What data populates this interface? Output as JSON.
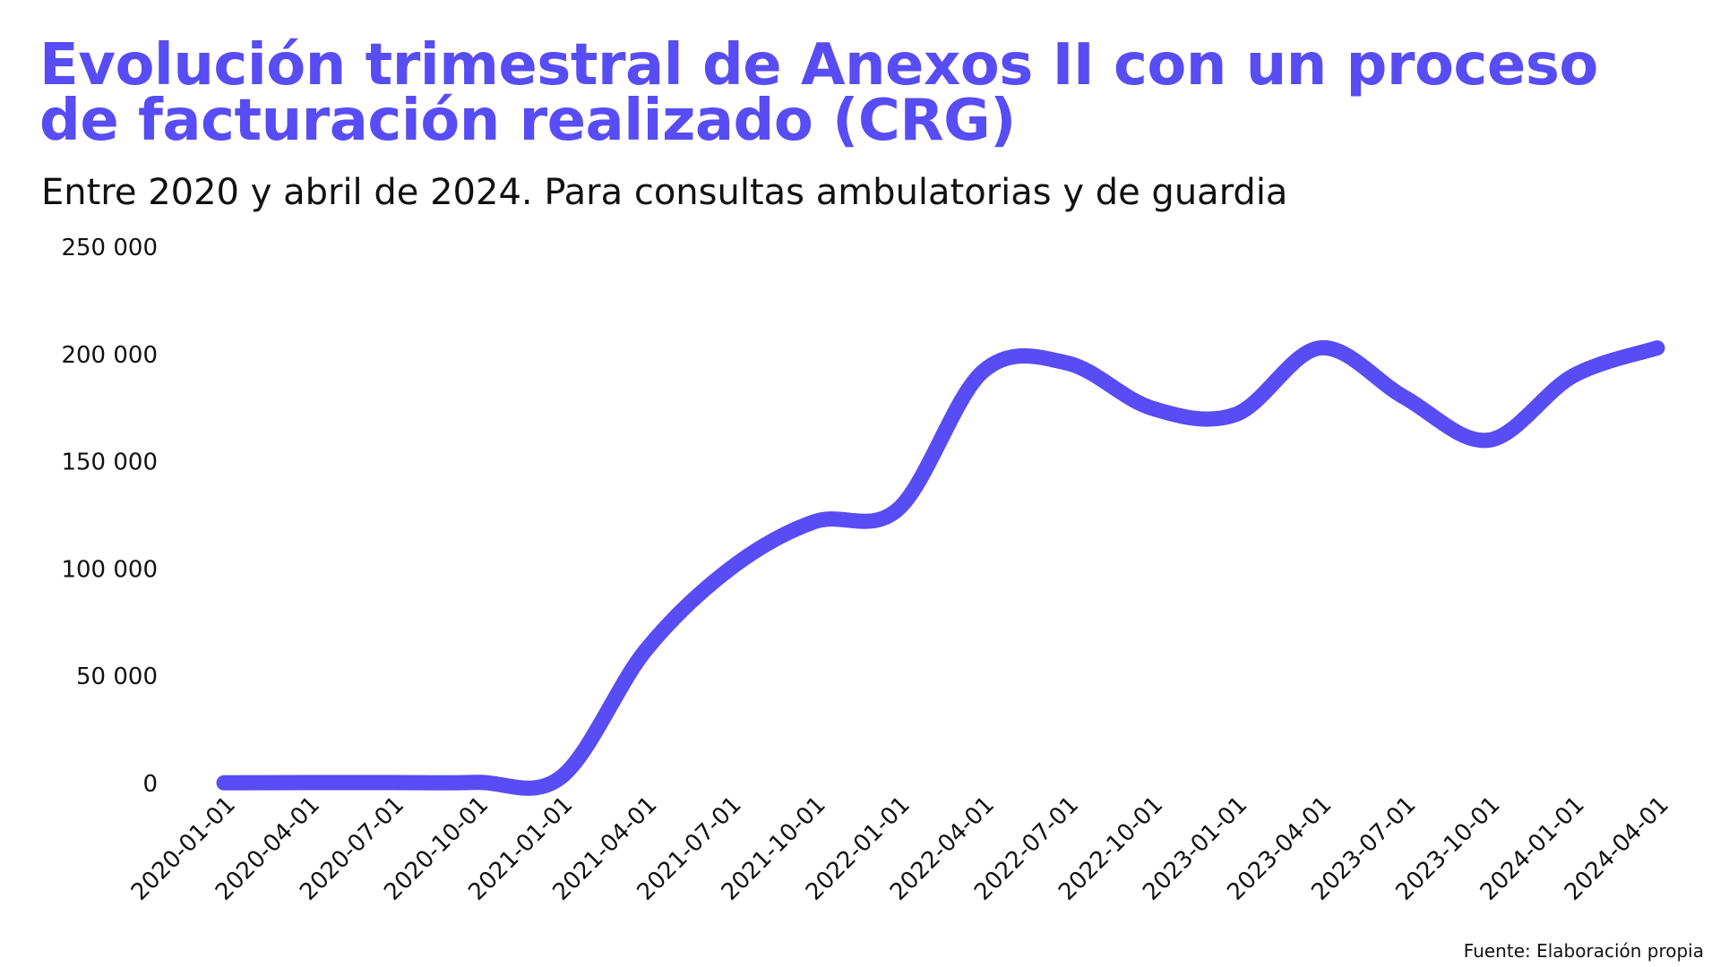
{
  "title": "Evolución trimestral de Anexos II con un proceso de facturación realizado (CRG)",
  "subtitle": "Entre 2020 y abril de 2024. Para consultas ambulatorias y de guardia",
  "source": "Fuente: Elaboración propia",
  "colors": {
    "line": "#584cf4",
    "title": "#584cf4",
    "text": "#111111",
    "background": "#ffffff"
  },
  "chart_data": {
    "type": "line",
    "title": "Evolución trimestral de Anexos II con un proceso de facturación realizado (CRG)",
    "subtitle": "Entre 2020 y abril de 2024. Para consultas ambulatorias y de guardia",
    "xlabel": "",
    "ylabel": "",
    "x": [
      "2020-01-01",
      "2020-04-01",
      "2020-07-01",
      "2020-10-01",
      "2021-01-01",
      "2021-04-01",
      "2021-07-01",
      "2021-10-01",
      "2022-01-01",
      "2022-04-01",
      "2022-07-01",
      "2022-10-01",
      "2023-01-01",
      "2023-04-01",
      "2023-07-01",
      "2023-10-01",
      "2024-01-01",
      "2024-04-01"
    ],
    "series": [
      {
        "values": [
          300,
          400,
          400,
          500,
          3000,
          62000,
          100000,
          122000,
          128000,
          192000,
          196000,
          175000,
          172000,
          203000,
          180000,
          160000,
          190000,
          203000
        ]
      }
    ],
    "y_ticks": [
      0,
      50000,
      100000,
      150000,
      200000,
      250000
    ],
    "y_tick_labels": [
      "0",
      "50 000",
      "100 000",
      "150 000",
      "200 000",
      "250 000"
    ],
    "ylim": [
      0,
      250000
    ],
    "grid": false,
    "legend": "none"
  }
}
